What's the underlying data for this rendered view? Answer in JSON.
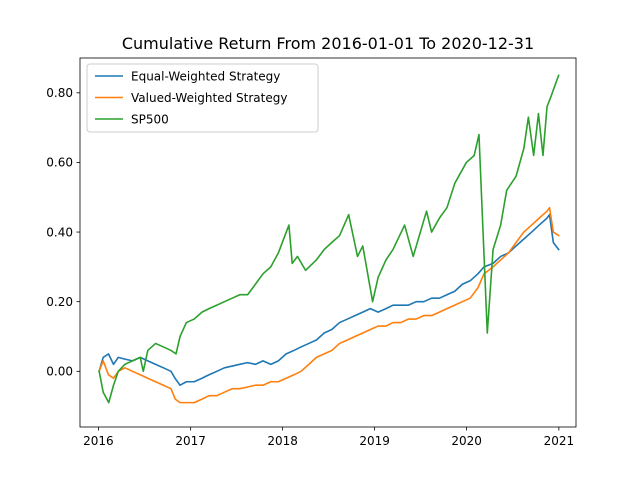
{
  "chart_data": {
    "type": "line",
    "title": "Cumulative Return From 2016-01-01 To 2020-12-31",
    "xlabel": "",
    "ylabel": "",
    "x_ticks": [
      "2016",
      "2017",
      "2018",
      "2019",
      "2020",
      "2021"
    ],
    "x_tick_values": [
      "2016-01-01",
      "2017-01-01",
      "2018-01-01",
      "2019-01-01",
      "2020-01-01",
      "2021-01-01"
    ],
    "y_ticks": [
      "0.00",
      "0.20",
      "0.40",
      "0.60",
      "0.80"
    ],
    "y_tick_values": [
      0.0,
      0.2,
      0.4,
      0.6,
      0.8
    ],
    "xlim": [
      "2015-10-20",
      "2021-03-10"
    ],
    "ylim": [
      -0.16,
      0.9
    ],
    "grid": false,
    "legend_position": "top-left",
    "series": [
      {
        "name": "Equal-Weighted Strategy",
        "color": "#1f77b4",
        "points": [
          [
            "2016-01-04",
            0.0
          ],
          [
            "2016-01-20",
            0.04
          ],
          [
            "2016-02-10",
            0.05
          ],
          [
            "2016-03-01",
            0.02
          ],
          [
            "2016-03-20",
            0.04
          ],
          [
            "2016-04-15",
            0.035
          ],
          [
            "2016-05-15",
            0.03
          ],
          [
            "2016-06-15",
            0.04
          ],
          [
            "2016-07-15",
            0.03
          ],
          [
            "2016-08-15",
            0.02
          ],
          [
            "2016-09-15",
            0.01
          ],
          [
            "2016-10-15",
            0.0
          ],
          [
            "2016-10-31",
            -0.02
          ],
          [
            "2016-11-20",
            -0.04
          ],
          [
            "2016-12-15",
            -0.03
          ],
          [
            "2017-01-15",
            -0.03
          ],
          [
            "2017-02-15",
            -0.02
          ],
          [
            "2017-03-15",
            -0.01
          ],
          [
            "2017-04-15",
            0.0
          ],
          [
            "2017-05-15",
            0.01
          ],
          [
            "2017-06-15",
            0.015
          ],
          [
            "2017-07-15",
            0.02
          ],
          [
            "2017-08-15",
            0.025
          ],
          [
            "2017-09-15",
            0.02
          ],
          [
            "2017-10-15",
            0.03
          ],
          [
            "2017-11-15",
            0.02
          ],
          [
            "2017-12-15",
            0.03
          ],
          [
            "2018-01-15",
            0.05
          ],
          [
            "2018-02-15",
            0.06
          ],
          [
            "2018-03-15",
            0.07
          ],
          [
            "2018-04-15",
            0.08
          ],
          [
            "2018-05-15",
            0.09
          ],
          [
            "2018-06-15",
            0.11
          ],
          [
            "2018-07-15",
            0.12
          ],
          [
            "2018-08-15",
            0.14
          ],
          [
            "2018-09-15",
            0.15
          ],
          [
            "2018-10-15",
            0.16
          ],
          [
            "2018-11-15",
            0.17
          ],
          [
            "2018-12-15",
            0.18
          ],
          [
            "2019-01-15",
            0.17
          ],
          [
            "2019-02-15",
            0.18
          ],
          [
            "2019-03-15",
            0.19
          ],
          [
            "2019-04-15",
            0.19
          ],
          [
            "2019-05-15",
            0.19
          ],
          [
            "2019-06-15",
            0.2
          ],
          [
            "2019-07-15",
            0.2
          ],
          [
            "2019-08-15",
            0.21
          ],
          [
            "2019-09-15",
            0.21
          ],
          [
            "2019-10-15",
            0.22
          ],
          [
            "2019-11-15",
            0.23
          ],
          [
            "2019-12-15",
            0.25
          ],
          [
            "2020-01-15",
            0.26
          ],
          [
            "2020-02-15",
            0.28
          ],
          [
            "2020-03-10",
            0.3
          ],
          [
            "2020-04-15",
            0.31
          ],
          [
            "2020-05-15",
            0.33
          ],
          [
            "2020-06-15",
            0.34
          ],
          [
            "2020-07-15",
            0.36
          ],
          [
            "2020-08-15",
            0.38
          ],
          [
            "2020-09-15",
            0.4
          ],
          [
            "2020-10-15",
            0.42
          ],
          [
            "2020-11-15",
            0.44
          ],
          [
            "2020-11-25",
            0.45
          ],
          [
            "2020-12-10",
            0.37
          ],
          [
            "2020-12-31",
            0.35
          ]
        ]
      },
      {
        "name": "Valued-Weighted Strategy",
        "color": "#ff7f0e",
        "points": [
          [
            "2016-01-04",
            0.0
          ],
          [
            "2016-01-20",
            0.03
          ],
          [
            "2016-02-10",
            -0.01
          ],
          [
            "2016-03-01",
            -0.02
          ],
          [
            "2016-03-20",
            0.0
          ],
          [
            "2016-04-15",
            0.01
          ],
          [
            "2016-05-15",
            0.0
          ],
          [
            "2016-06-15",
            -0.01
          ],
          [
            "2016-07-15",
            -0.02
          ],
          [
            "2016-08-15",
            -0.03
          ],
          [
            "2016-09-15",
            -0.04
          ],
          [
            "2016-10-15",
            -0.05
          ],
          [
            "2016-11-01",
            -0.08
          ],
          [
            "2016-11-20",
            -0.09
          ],
          [
            "2016-12-15",
            -0.09
          ],
          [
            "2017-01-15",
            -0.09
          ],
          [
            "2017-02-15",
            -0.08
          ],
          [
            "2017-03-15",
            -0.07
          ],
          [
            "2017-04-15",
            -0.07
          ],
          [
            "2017-05-15",
            -0.06
          ],
          [
            "2017-06-15",
            -0.05
          ],
          [
            "2017-07-15",
            -0.05
          ],
          [
            "2017-08-15",
            -0.045
          ],
          [
            "2017-09-15",
            -0.04
          ],
          [
            "2017-10-15",
            -0.04
          ],
          [
            "2017-11-15",
            -0.03
          ],
          [
            "2017-12-15",
            -0.03
          ],
          [
            "2018-01-15",
            -0.02
          ],
          [
            "2018-02-15",
            -0.01
          ],
          [
            "2018-03-15",
            0.0
          ],
          [
            "2018-04-15",
            0.02
          ],
          [
            "2018-05-15",
            0.04
          ],
          [
            "2018-06-15",
            0.05
          ],
          [
            "2018-07-15",
            0.06
          ],
          [
            "2018-08-15",
            0.08
          ],
          [
            "2018-09-15",
            0.09
          ],
          [
            "2018-10-15",
            0.1
          ],
          [
            "2018-11-15",
            0.11
          ],
          [
            "2018-12-15",
            0.12
          ],
          [
            "2019-01-15",
            0.13
          ],
          [
            "2019-02-15",
            0.13
          ],
          [
            "2019-03-15",
            0.14
          ],
          [
            "2019-04-15",
            0.14
          ],
          [
            "2019-05-15",
            0.15
          ],
          [
            "2019-06-15",
            0.15
          ],
          [
            "2019-07-15",
            0.16
          ],
          [
            "2019-08-15",
            0.16
          ],
          [
            "2019-09-15",
            0.17
          ],
          [
            "2019-10-15",
            0.18
          ],
          [
            "2019-11-15",
            0.19
          ],
          [
            "2019-12-15",
            0.2
          ],
          [
            "2020-01-15",
            0.21
          ],
          [
            "2020-02-15",
            0.24
          ],
          [
            "2020-03-10",
            0.28
          ],
          [
            "2020-04-15",
            0.3
          ],
          [
            "2020-05-15",
            0.32
          ],
          [
            "2020-06-15",
            0.34
          ],
          [
            "2020-07-15",
            0.37
          ],
          [
            "2020-08-15",
            0.4
          ],
          [
            "2020-09-15",
            0.42
          ],
          [
            "2020-10-15",
            0.44
          ],
          [
            "2020-11-15",
            0.46
          ],
          [
            "2020-11-25",
            0.47
          ],
          [
            "2020-12-10",
            0.4
          ],
          [
            "2020-12-31",
            0.39
          ]
        ]
      },
      {
        "name": "SP500",
        "color": "#2ca02c",
        "points": [
          [
            "2016-01-04",
            0.0
          ],
          [
            "2016-01-20",
            -0.06
          ],
          [
            "2016-02-11",
            -0.09
          ],
          [
            "2016-03-01",
            -0.04
          ],
          [
            "2016-03-20",
            0.0
          ],
          [
            "2016-04-15",
            0.02
          ],
          [
            "2016-05-15",
            0.03
          ],
          [
            "2016-06-15",
            0.04
          ],
          [
            "2016-06-27",
            0.0
          ],
          [
            "2016-07-15",
            0.06
          ],
          [
            "2016-08-15",
            0.08
          ],
          [
            "2016-09-15",
            0.07
          ],
          [
            "2016-10-15",
            0.06
          ],
          [
            "2016-11-04",
            0.05
          ],
          [
            "2016-11-20",
            0.1
          ],
          [
            "2016-12-15",
            0.14
          ],
          [
            "2017-01-15",
            0.15
          ],
          [
            "2017-02-15",
            0.17
          ],
          [
            "2017-03-15",
            0.18
          ],
          [
            "2017-04-15",
            0.19
          ],
          [
            "2017-05-15",
            0.2
          ],
          [
            "2017-06-15",
            0.21
          ],
          [
            "2017-07-15",
            0.22
          ],
          [
            "2017-08-15",
            0.22
          ],
          [
            "2017-09-15",
            0.25
          ],
          [
            "2017-10-15",
            0.28
          ],
          [
            "2017-11-15",
            0.3
          ],
          [
            "2017-12-15",
            0.34
          ],
          [
            "2018-01-26",
            0.42
          ],
          [
            "2018-02-08",
            0.31
          ],
          [
            "2018-03-01",
            0.33
          ],
          [
            "2018-04-02",
            0.29
          ],
          [
            "2018-05-15",
            0.32
          ],
          [
            "2018-06-15",
            0.35
          ],
          [
            "2018-07-15",
            0.37
          ],
          [
            "2018-08-15",
            0.39
          ],
          [
            "2018-09-20",
            0.45
          ],
          [
            "2018-10-25",
            0.33
          ],
          [
            "2018-11-15",
            0.36
          ],
          [
            "2018-12-24",
            0.2
          ],
          [
            "2019-01-15",
            0.27
          ],
          [
            "2019-02-15",
            0.32
          ],
          [
            "2019-03-15",
            0.35
          ],
          [
            "2019-04-30",
            0.42
          ],
          [
            "2019-06-03",
            0.33
          ],
          [
            "2019-07-26",
            0.46
          ],
          [
            "2019-08-15",
            0.4
          ],
          [
            "2019-09-15",
            0.44
          ],
          [
            "2019-10-15",
            0.47
          ],
          [
            "2019-11-15",
            0.54
          ],
          [
            "2019-12-31",
            0.6
          ],
          [
            "2020-01-31",
            0.62
          ],
          [
            "2020-02-19",
            0.68
          ],
          [
            "2020-03-23",
            0.11
          ],
          [
            "2020-04-15",
            0.35
          ],
          [
            "2020-05-15",
            0.42
          ],
          [
            "2020-06-08",
            0.52
          ],
          [
            "2020-07-15",
            0.56
          ],
          [
            "2020-08-15",
            0.64
          ],
          [
            "2020-09-02",
            0.73
          ],
          [
            "2020-09-23",
            0.62
          ],
          [
            "2020-10-12",
            0.74
          ],
          [
            "2020-10-30",
            0.62
          ],
          [
            "2020-11-15",
            0.76
          ],
          [
            "2020-12-01",
            0.79
          ],
          [
            "2020-12-31",
            0.85
          ]
        ]
      }
    ]
  }
}
